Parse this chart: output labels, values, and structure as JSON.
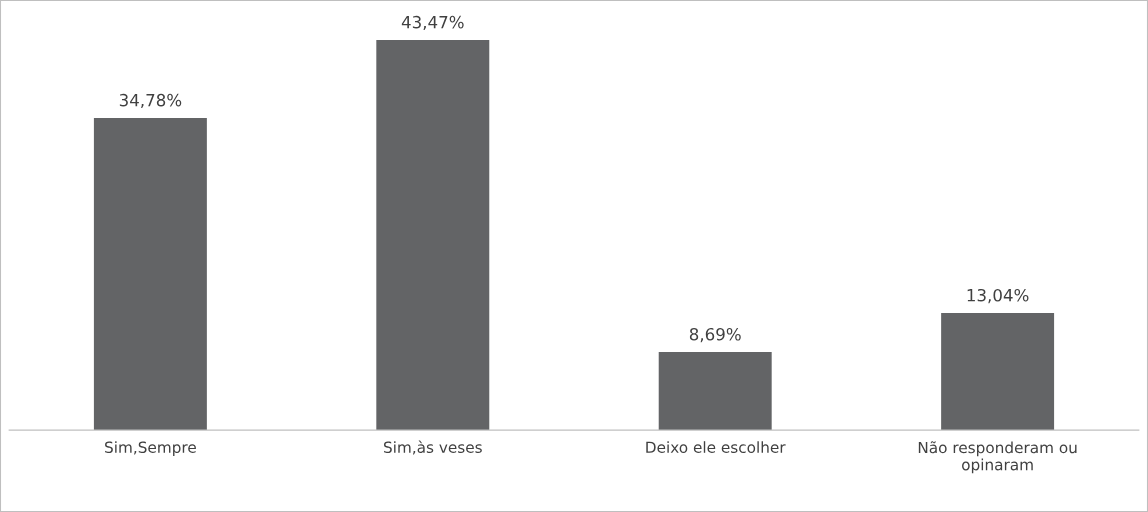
{
  "chart_data": {
    "type": "bar",
    "categories": [
      "Sim,Sempre",
      "Sim,às veses",
      "Deixo ele escolher",
      "Não responderam ou\nopinaram"
    ],
    "values": [
      34.78,
      43.47,
      8.69,
      13.04
    ],
    "color": "#636466",
    "value_labels": [
      "34,78%",
      "43,47%",
      "8,69%",
      "13,04%"
    ],
    "grid": false,
    "legend": false
  }
}
